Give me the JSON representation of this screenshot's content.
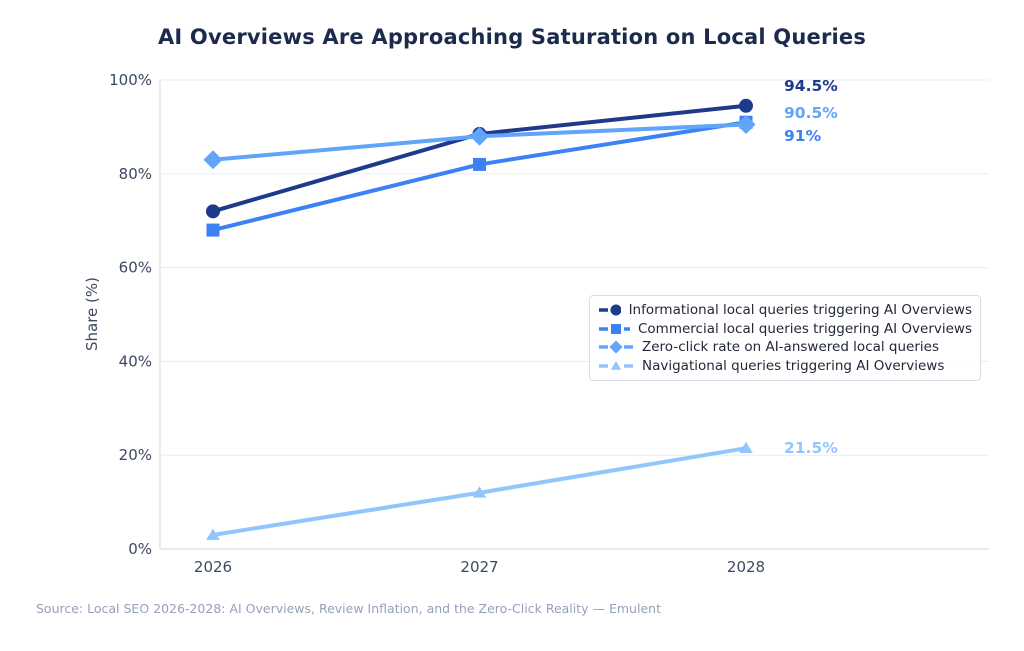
{
  "title": "AI Overviews Are Approaching Saturation on Local Queries",
  "source": "Source: Local SEO 2026-2028: AI Overviews, Review Inflation, and the Zero-Click Reality — Emulent",
  "chart_data": {
    "type": "line",
    "x": [
      2026,
      2027,
      2028
    ],
    "xticklabels": [
      "2026",
      "2027",
      "2028"
    ],
    "ylabel": "Share (%)",
    "xlabel": "",
    "ylim": [
      0,
      100
    ],
    "ytick_values": [
      0,
      20,
      40,
      60,
      80,
      100
    ],
    "yticklabels": [
      "0%",
      "20%",
      "40%",
      "60%",
      "80%",
      "100%"
    ],
    "grid": true,
    "legend_position": "center-right",
    "series": [
      {
        "name": "Informational local queries triggering AI Overviews",
        "marker": "circle",
        "color": "#1e3a8a",
        "values": [
          72,
          88.5,
          94.5
        ],
        "end_label": "94.5%"
      },
      {
        "name": "Commercial local queries triggering AI Overviews",
        "marker": "square",
        "color": "#3b82f6",
        "values": [
          68,
          82,
          91
        ],
        "end_label": "91%"
      },
      {
        "name": "Zero-click rate on AI-answered local queries",
        "marker": "diamond",
        "color": "#60a5fa",
        "values": [
          83,
          88,
          90.5
        ],
        "end_label": "90.5%"
      },
      {
        "name": "Navigational queries triggering AI Overviews",
        "marker": "triangle",
        "color": "#93c5fd",
        "values": [
          3,
          12,
          21.5
        ],
        "end_label": "21.5%"
      }
    ]
  }
}
